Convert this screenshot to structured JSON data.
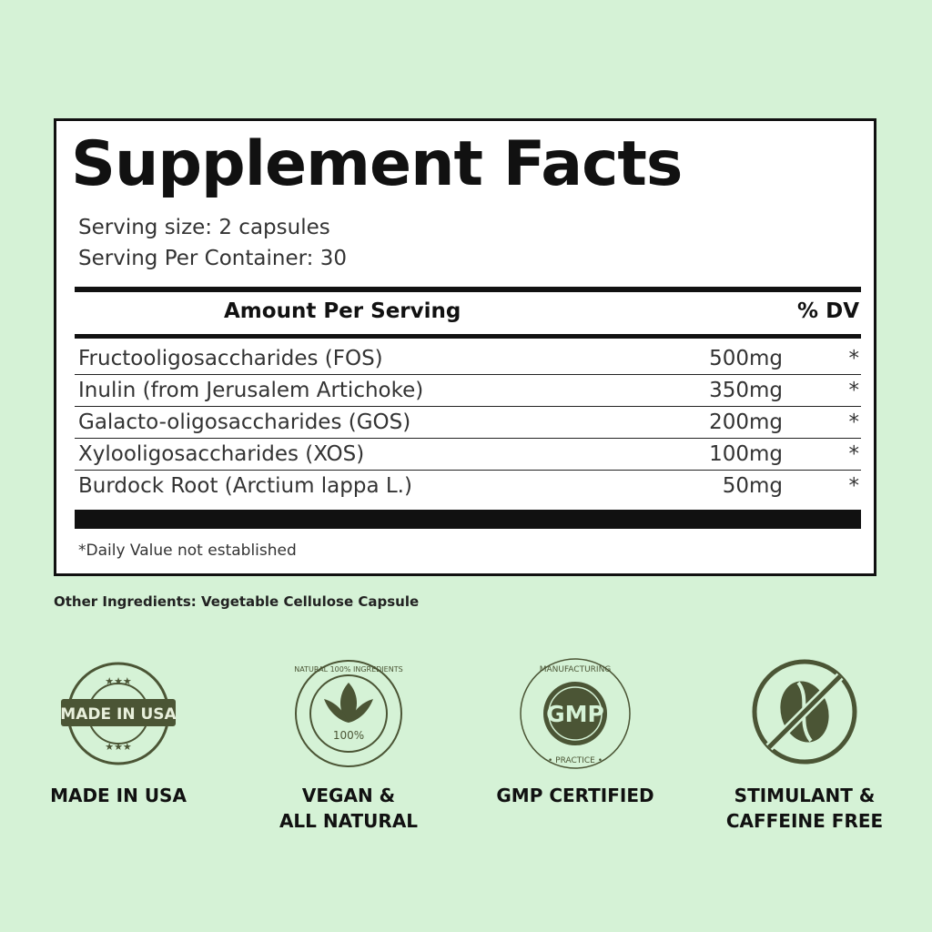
{
  "facts": {
    "title": "Supplement Facts",
    "serving_size": "Serving size: 2 capsules",
    "servings_per_container": "Serving Per Container: 30",
    "header_amount": "Amount Per Serving",
    "header_dv": "% DV",
    "rows": [
      {
        "name": "Fructooligosaccharides (FOS)",
        "amount": "500mg",
        "dv": "*"
      },
      {
        "name": "Inulin (from Jerusalem Artichoke)",
        "amount": "350mg",
        "dv": "*"
      },
      {
        "name": "Galacto-oligosaccharides (GOS)",
        "amount": "200mg",
        "dv": "*"
      },
      {
        "name": "Xylooligosaccharides (XOS)",
        "amount": "100mg",
        "dv": "*"
      },
      {
        "name": "Burdock Root (Arctium lappa L.)",
        "amount": "50mg",
        "dv": "*"
      }
    ],
    "footnote": "*Daily Value not established"
  },
  "other_ingredients": "Other Ingredients: Vegetable Cellulose Capsule",
  "badges": [
    {
      "icon": "made-in-usa-seal-icon",
      "seal_text": "MADE IN USA",
      "label_1": "MADE IN USA",
      "label_2": ""
    },
    {
      "icon": "natural-leaf-seal-icon",
      "seal_text": "NATURAL 100% INGREDIENTS",
      "label_1": "VEGAN &",
      "label_2": "ALL NATURAL"
    },
    {
      "icon": "gmp-seal-icon",
      "seal_text": "GOOD MANUFACTURING PRACTICE GMP",
      "label_1": "GMP CERTIFIED",
      "label_2": ""
    },
    {
      "icon": "no-coffee-bean-icon",
      "seal_text": "",
      "label_1": "STIMULANT &",
      "label_2": "CAFFEINE FREE"
    }
  ],
  "colors": {
    "background": "#d5f2d6",
    "icon": "#4b5535"
  }
}
